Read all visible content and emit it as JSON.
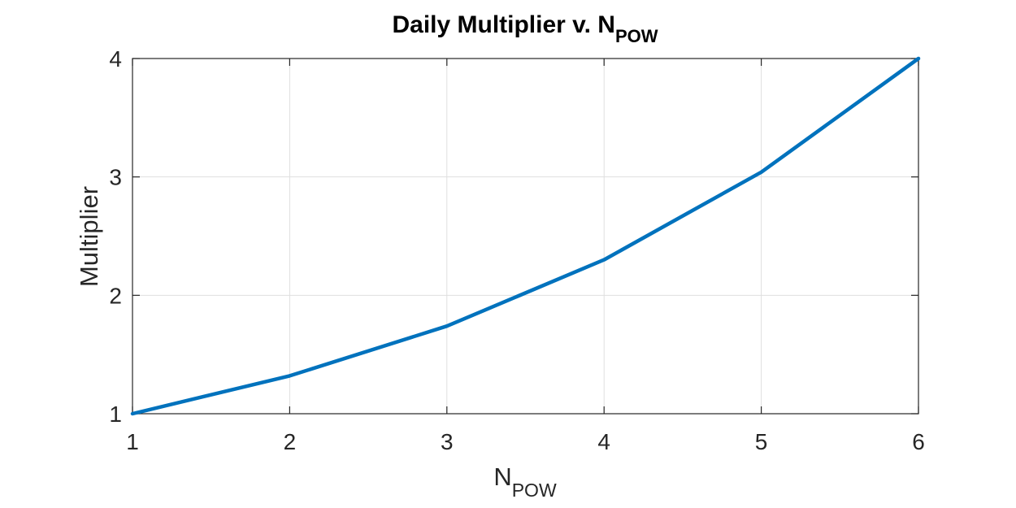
{
  "chart_data": {
    "type": "line",
    "title": {
      "main": "Daily Multiplier v. N",
      "sub": "POW"
    },
    "xlabel": {
      "main": "N",
      "sub": "POW"
    },
    "ylabel": "Multiplier",
    "xlim": [
      1,
      6
    ],
    "ylim": [
      1,
      4
    ],
    "x_ticks": [
      "1",
      "2",
      "3",
      "4",
      "5",
      "6"
    ],
    "y_ticks": [
      "1",
      "2",
      "3",
      "4"
    ],
    "grid": true,
    "series": [
      {
        "x": [
          1,
          2,
          3,
          4,
          5,
          6
        ],
        "values": [
          1.0,
          1.32,
          1.74,
          2.3,
          3.04,
          4.0
        ]
      }
    ],
    "colors": {
      "series": "#0072bd",
      "axis": "#262626",
      "grid": "#dfdfdf"
    }
  }
}
